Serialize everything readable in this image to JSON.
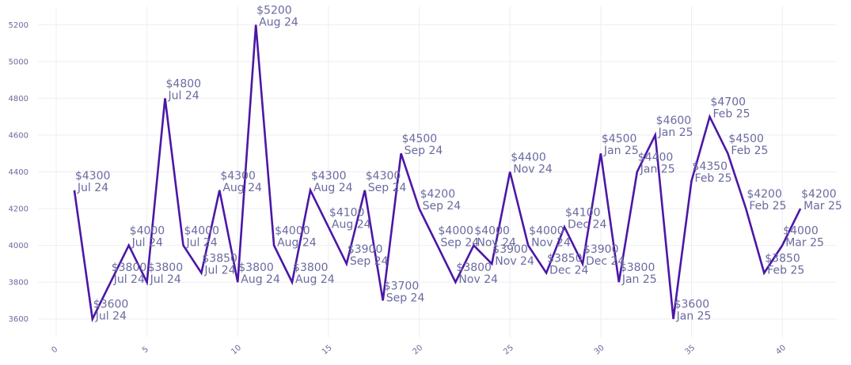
{
  "chart_data": {
    "type": "line",
    "title": "",
    "xlabel": "",
    "ylabel": "",
    "xlim": [
      -1,
      43
    ],
    "ylim": [
      3500,
      5300
    ],
    "xticks": [
      "0",
      "5",
      "10",
      "15",
      "20",
      "25",
      "30",
      "35",
      "40"
    ],
    "yticks": [
      "3600",
      "3800",
      "4000",
      "4200",
      "4400",
      "4600",
      "4800",
      "5000",
      "5200"
    ],
    "grid": true,
    "legend": "none",
    "line_color": "#4b17a6",
    "label_color": "#6a6aa0",
    "x": [
      1,
      2,
      3,
      4,
      5,
      6,
      7,
      8,
      9,
      10,
      11,
      12,
      13,
      14,
      15,
      16,
      17,
      18,
      19,
      20,
      21,
      22,
      23,
      24,
      25,
      26,
      27,
      28,
      29,
      30,
      31,
      32,
      33,
      34,
      35,
      36,
      37,
      38,
      39,
      40,
      41
    ],
    "values": [
      4300,
      3600,
      3800,
      4000,
      3800,
      4800,
      4000,
      3850,
      4300,
      3800,
      5200,
      4000,
      3800,
      4300,
      4100,
      3900,
      4300,
      3700,
      4500,
      4200,
      4000,
      3800,
      4000,
      3900,
      4400,
      4000,
      3850,
      4100,
      3900,
      4500,
      3800,
      4400,
      4600,
      3600,
      4350,
      4700,
      4500,
      4200,
      3850,
      4000,
      4200
    ],
    "point_labels": [
      {
        "price": "$4300",
        "date": "Jul 24"
      },
      {
        "price": "$3600",
        "date": "Jul 24"
      },
      {
        "price": "$3800",
        "date": "Jul 24"
      },
      {
        "price": "$4000",
        "date": "Jul 24"
      },
      {
        "price": "$3800",
        "date": "Jul 24"
      },
      {
        "price": "$4800",
        "date": "Jul 24"
      },
      {
        "price": "$4000",
        "date": "Jul 24"
      },
      {
        "price": "$3850",
        "date": "Jul 24"
      },
      {
        "price": "$4300",
        "date": "Aug 24"
      },
      {
        "price": "$3800",
        "date": "Aug 24"
      },
      {
        "price": "$5200",
        "date": "Aug 24"
      },
      {
        "price": "$4000",
        "date": "Aug 24"
      },
      {
        "price": "$3800",
        "date": "Aug 24"
      },
      {
        "price": "$4300",
        "date": "Aug 24"
      },
      {
        "price": "$4100",
        "date": "Aug 24"
      },
      {
        "price": "$3900",
        "date": "Sep 24"
      },
      {
        "price": "$4300",
        "date": "Sep 24"
      },
      {
        "price": "$3700",
        "date": "Sep 24"
      },
      {
        "price": "$4500",
        "date": "Sep 24"
      },
      {
        "price": "$4200",
        "date": "Sep 24"
      },
      {
        "price": "$4000",
        "date": "Sep 24"
      },
      {
        "price": "$3800",
        "date": "Nov 24"
      },
      {
        "price": "$4000",
        "date": "Nov 24"
      },
      {
        "price": "$3900",
        "date": "Nov 24"
      },
      {
        "price": "$4400",
        "date": "Nov 24"
      },
      {
        "price": "$4000",
        "date": "Nov 24"
      },
      {
        "price": "$3850",
        "date": "Dec 24"
      },
      {
        "price": "$4100",
        "date": "Dec 24"
      },
      {
        "price": "$3900",
        "date": "Dec 24"
      },
      {
        "price": "$4500",
        "date": "Jan 25"
      },
      {
        "price": "$3800",
        "date": "Jan 25"
      },
      {
        "price": "$4400",
        "date": "Jan 25"
      },
      {
        "price": "$4600",
        "date": "Jan 25"
      },
      {
        "price": "$3600",
        "date": "Jan 25"
      },
      {
        "price": "$4350",
        "date": "Feb 25"
      },
      {
        "price": "$4700",
        "date": "Feb 25"
      },
      {
        "price": "$4500",
        "date": "Feb 25"
      },
      {
        "price": "$4200",
        "date": "Feb 25"
      },
      {
        "price": "$3850",
        "date": "Feb 25"
      },
      {
        "price": "$4000",
        "date": "Mar 25"
      },
      {
        "price": "$4200",
        "date": "Mar 25"
      }
    ]
  }
}
